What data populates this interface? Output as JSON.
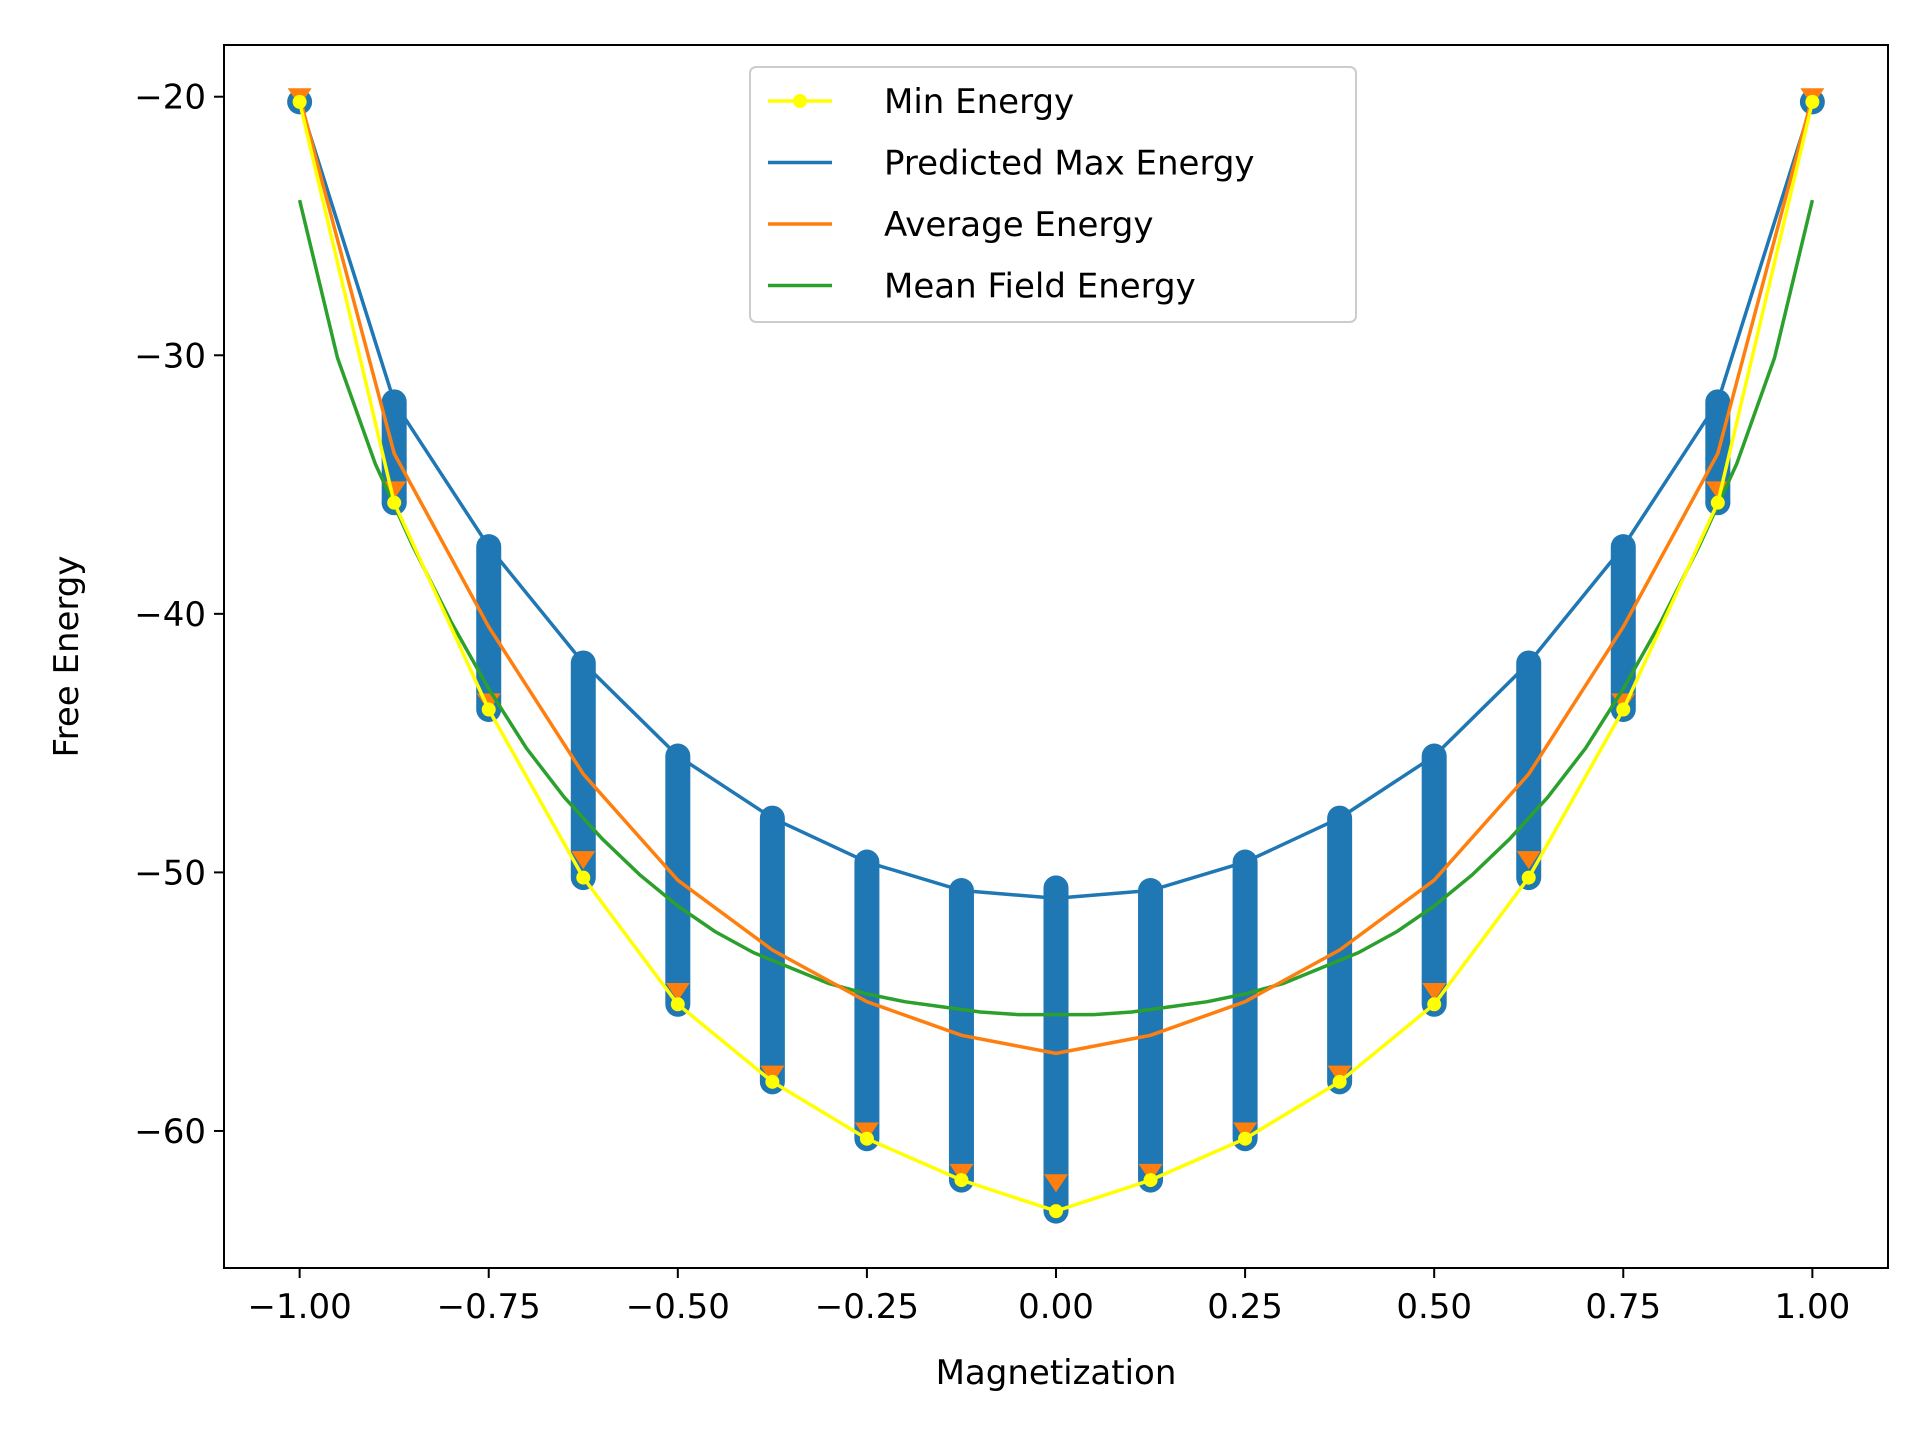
{
  "chart_data": {
    "type": "line",
    "xlabel": "Magnetization",
    "ylabel": "Free Energy",
    "xlim": [
      -1.1,
      1.1
    ],
    "ylim": [
      -65.3,
      -18.0
    ],
    "x_ticks": [
      -1.0,
      -0.75,
      -0.5,
      -0.25,
      0.0,
      0.25,
      0.5,
      0.75,
      1.0
    ],
    "x_tick_labels": [
      "−1.00",
      "−0.75",
      "−0.50",
      "−0.25",
      "0.00",
      "0.25",
      "0.50",
      "0.75",
      "1.00"
    ],
    "y_ticks": [
      -60,
      -50,
      -40,
      -30,
      -20
    ],
    "y_tick_labels": [
      "−60",
      "−50",
      "−40",
      "−30",
      "−20"
    ],
    "grid": false,
    "legend_position": "top-center",
    "colors": {
      "min": "#ffff00",
      "max": "#1f77b4",
      "avg": "#ff7f0e",
      "mean_field": "#2ca02c",
      "samples": "#1f77b4"
    },
    "series": [
      {
        "name": "Min Energy",
        "marker": "dot",
        "x": [
          -1.0,
          -0.875,
          -0.75,
          -0.625,
          -0.5,
          -0.375,
          -0.25,
          -0.125,
          0.0,
          0.125,
          0.25,
          0.375,
          0.5,
          0.625,
          0.75,
          0.875,
          1.0
        ],
        "y": [
          -20.2,
          -35.7,
          -43.7,
          -50.2,
          -55.1,
          -58.1,
          -60.3,
          -61.9,
          -63.1,
          -61.9,
          -60.3,
          -58.1,
          -55.1,
          -50.2,
          -43.7,
          -35.7,
          -20.2
        ]
      },
      {
        "name": "Predicted Max Energy",
        "x": [
          -1.0,
          -0.875,
          -0.75,
          -0.625,
          -0.5,
          -0.375,
          -0.25,
          -0.125,
          0.0,
          0.125,
          0.25,
          0.375,
          0.5,
          0.625,
          0.75,
          0.875,
          1.0
        ],
        "y": [
          -20.2,
          -31.8,
          -37.4,
          -41.9,
          -45.5,
          -47.9,
          -49.6,
          -50.7,
          -51.0,
          -50.7,
          -49.6,
          -47.9,
          -45.5,
          -41.9,
          -37.4,
          -31.8,
          -20.2
        ]
      },
      {
        "name": "Average Energy",
        "x": [
          -1.0,
          -0.875,
          -0.75,
          -0.625,
          -0.5,
          -0.375,
          -0.25,
          -0.125,
          0.0,
          0.125,
          0.25,
          0.375,
          0.5,
          0.625,
          0.75,
          0.875,
          1.0
        ],
        "y": [
          -20.0,
          -33.8,
          -40.5,
          -46.2,
          -50.3,
          -53.0,
          -55.0,
          -56.3,
          -57.0,
          -56.3,
          -55.0,
          -53.0,
          -50.3,
          -46.2,
          -40.5,
          -33.8,
          -20.0
        ]
      },
      {
        "name": "Mean Field Energy",
        "x": [
          -1.0,
          -0.95,
          -0.9,
          -0.85,
          -0.8,
          -0.75,
          -0.7,
          -0.65,
          -0.6,
          -0.55,
          -0.5,
          -0.45,
          -0.4,
          -0.35,
          -0.3,
          -0.25,
          -0.2,
          -0.15,
          -0.1,
          -0.05,
          0.0,
          0.05,
          0.1,
          0.15,
          0.2,
          0.25,
          0.3,
          0.35,
          0.4,
          0.45,
          0.5,
          0.55,
          0.6,
          0.65,
          0.7,
          0.75,
          0.8,
          0.85,
          0.9,
          0.95,
          1.0
        ],
        "y": [
          -24.0,
          -30.1,
          -34.2,
          -37.4,
          -40.3,
          -42.9,
          -45.2,
          -47.1,
          -48.7,
          -50.1,
          -51.3,
          -52.3,
          -53.1,
          -53.7,
          -54.3,
          -54.7,
          -55.0,
          -55.2,
          -55.4,
          -55.5,
          -55.5,
          -55.5,
          -55.4,
          -55.2,
          -55.0,
          -54.7,
          -54.3,
          -53.7,
          -53.1,
          -52.3,
          -51.3,
          -50.1,
          -48.7,
          -47.1,
          -45.2,
          -42.9,
          -40.3,
          -37.4,
          -34.2,
          -30.1,
          -24.0
        ]
      }
    ],
    "sample_ranges": {
      "x": [
        -1.0,
        -0.875,
        -0.75,
        -0.625,
        -0.5,
        -0.375,
        -0.25,
        -0.125,
        0.0,
        0.125,
        0.25,
        0.375,
        0.5,
        0.625,
        0.75,
        0.875,
        1.0
      ],
      "upper": [
        -20.2,
        -31.8,
        -37.4,
        -41.9,
        -45.5,
        -47.9,
        -49.6,
        -50.7,
        -50.6,
        -50.7,
        -49.6,
        -47.9,
        -45.5,
        -41.9,
        -37.4,
        -31.8,
        -20.2
      ],
      "lower": [
        -20.2,
        -35.7,
        -43.7,
        -50.2,
        -55.1,
        -58.1,
        -60.3,
        -61.9,
        -63.1,
        -61.9,
        -60.3,
        -58.1,
        -55.1,
        -50.2,
        -43.7,
        -35.7,
        -20.2
      ],
      "isolated": [
        [
          -0.875,
          -34.0
        ],
        [
          0.875,
          -34.0
        ],
        [
          -0.875,
          -35.7
        ],
        [
          0.875,
          -35.7
        ]
      ]
    },
    "avg_min_markers": {
      "x": [
        -1.0,
        -0.875,
        -0.75,
        -0.625,
        -0.5,
        -0.375,
        -0.25,
        -0.125,
        0.0,
        0.125,
        0.25,
        0.375,
        0.5,
        0.625,
        0.75,
        0.875,
        1.0
      ],
      "y": [
        -20.0,
        -35.2,
        -43.4,
        -49.5,
        -54.6,
        -57.8,
        -60.0,
        -61.6,
        -62.0,
        -61.6,
        -60.0,
        -57.8,
        -54.6,
        -49.5,
        -43.4,
        -35.2,
        -20.0
      ]
    }
  }
}
